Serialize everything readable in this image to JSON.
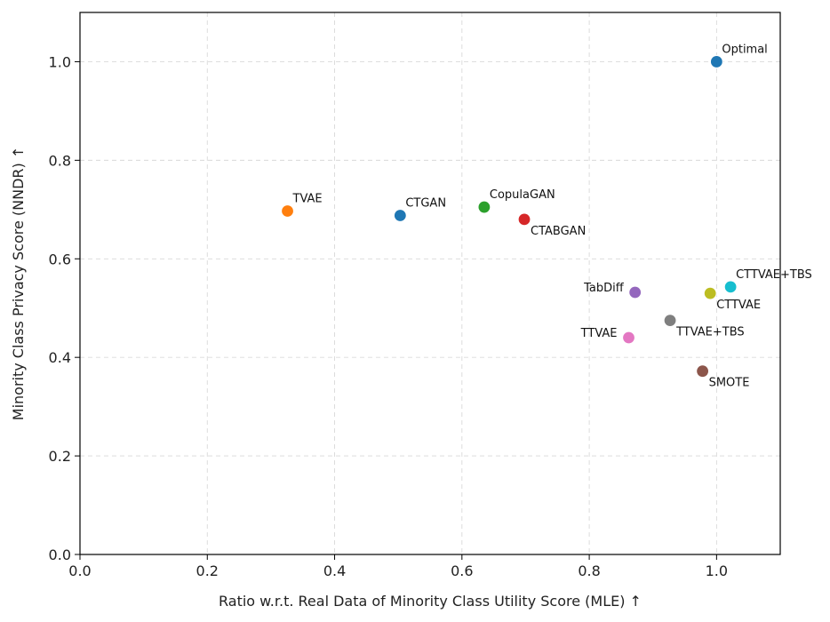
{
  "chart_data": {
    "type": "scatter",
    "xlabel": "Ratio w.r.t. Real Data of Minority Class Utility Score (MLE) ↑",
    "ylabel": "Minority Class Privacy Score (NNDR) ↑",
    "xlim": [
      0.0,
      1.1
    ],
    "ylim": [
      0.0,
      1.1
    ],
    "grid": true,
    "x_ticks": [
      "0.0",
      "0.2",
      "0.4",
      "0.6",
      "0.8",
      "1.0"
    ],
    "y_ticks": [
      "0.0",
      "0.2",
      "0.4",
      "0.6",
      "0.8",
      "1.0"
    ],
    "points": [
      {
        "label": "Optimal",
        "x": 1.0,
        "y": 1.0,
        "color": "#1f77b4",
        "label_pos": "above-right"
      },
      {
        "label": "TVAE",
        "x": 0.326,
        "y": 0.697,
        "color": "#ff7f0e",
        "label_pos": "above-right"
      },
      {
        "label": "CTGAN",
        "x": 0.503,
        "y": 0.688,
        "color": "#1f77b4",
        "label_pos": "above-right"
      },
      {
        "label": "CopulaGAN",
        "x": 0.635,
        "y": 0.705,
        "color": "#2ca02c",
        "label_pos": "above-right"
      },
      {
        "label": "CTABGAN",
        "x": 0.698,
        "y": 0.68,
        "color": "#d62728",
        "label_pos": "below-right"
      },
      {
        "label": "TabDiff",
        "x": 0.872,
        "y": 0.532,
        "color": "#9467bd",
        "label_pos": "left"
      },
      {
        "label": "CTTVAE",
        "x": 0.99,
        "y": 0.53,
        "color": "#bcbd22",
        "label_pos": "below-right"
      },
      {
        "label": "CTTVAE+TBS",
        "x": 1.022,
        "y": 0.543,
        "color": "#17becf",
        "label_pos": "above-right"
      },
      {
        "label": "TTVAE+TBS",
        "x": 0.927,
        "y": 0.475,
        "color": "#7f7f7f",
        "label_pos": "below-right"
      },
      {
        "label": "TTVAE",
        "x": 0.862,
        "y": 0.44,
        "color": "#e377c2",
        "label_pos": "left"
      },
      {
        "label": "SMOTE",
        "x": 0.978,
        "y": 0.372,
        "color": "#8c564b",
        "label_pos": "below-right"
      }
    ]
  }
}
